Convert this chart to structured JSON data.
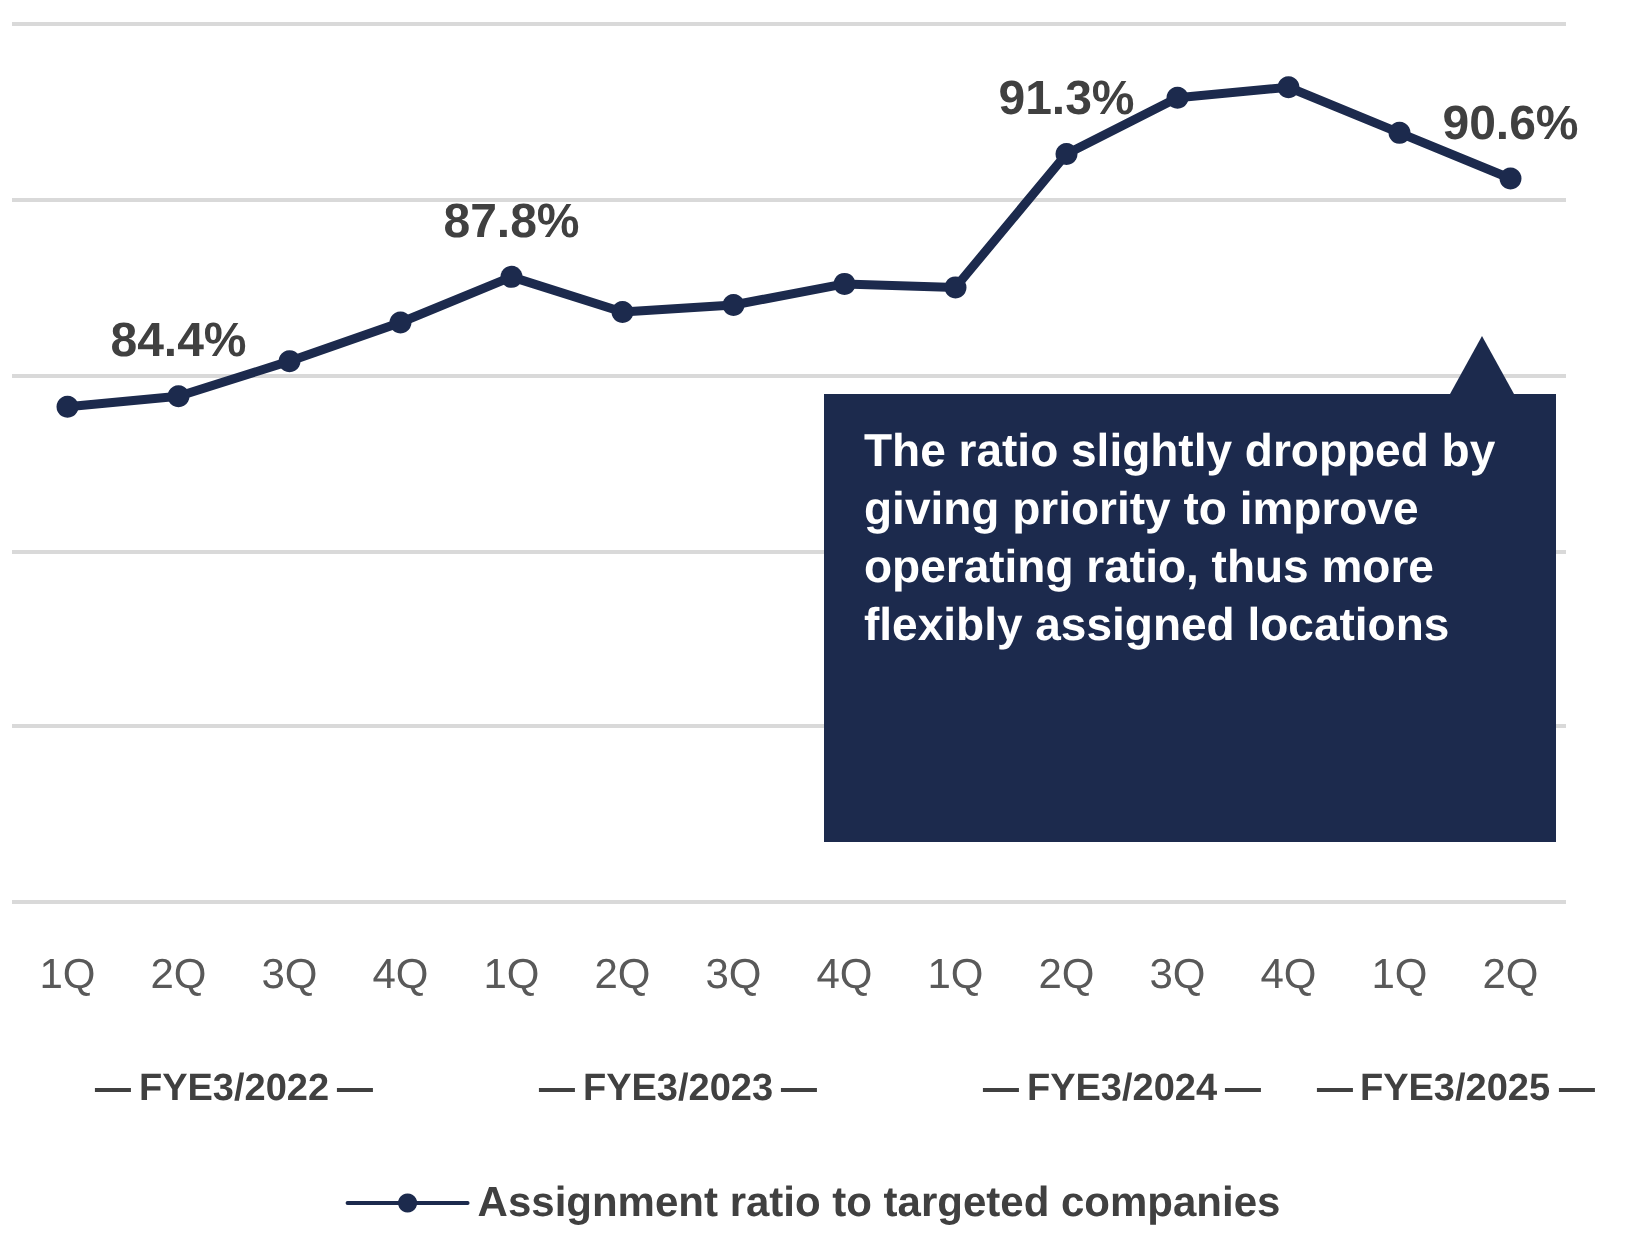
{
  "chart_data": {
    "type": "line",
    "categories": [
      "1Q",
      "2Q",
      "3Q",
      "4Q",
      "1Q",
      "2Q",
      "3Q",
      "4Q",
      "1Q",
      "2Q",
      "3Q",
      "4Q",
      "1Q",
      "2Q"
    ],
    "series": [
      {
        "name": "Assignment ratio to targeted companies",
        "color": "#1c2a4d",
        "values": [
          84.1,
          84.4,
          85.4,
          86.5,
          87.8,
          86.8,
          87.0,
          87.6,
          87.5,
          91.3,
          92.9,
          93.2,
          91.9,
          90.6
        ],
        "value_labels": [
          null,
          "84.4%",
          null,
          null,
          "87.8%",
          null,
          null,
          null,
          null,
          "91.3%",
          null,
          null,
          null,
          "90.6%"
        ]
      }
    ],
    "ylim": [
      70,
      95
    ],
    "yticks": [
      {
        "value": 70,
        "label": null
      },
      {
        "value": 75,
        "label": null
      },
      {
        "value": 80,
        "label": null
      },
      {
        "value": 85,
        "label": null
      },
      {
        "value": 90,
        "label": null
      },
      {
        "value": 95,
        "label": null
      }
    ],
    "tick_labels": "x",
    "grid": "y",
    "legend": "bottom",
    "marker": "circle",
    "line_style": "solid",
    "annotations": [
      "The ratio slightly dropped by giving priority to improve operating ratio, thus more flexibly assigned locations",
      "FYE3/2022",
      "FYE3/2023",
      "FYE3/2024",
      "FYE3/2025"
    ]
  }
}
